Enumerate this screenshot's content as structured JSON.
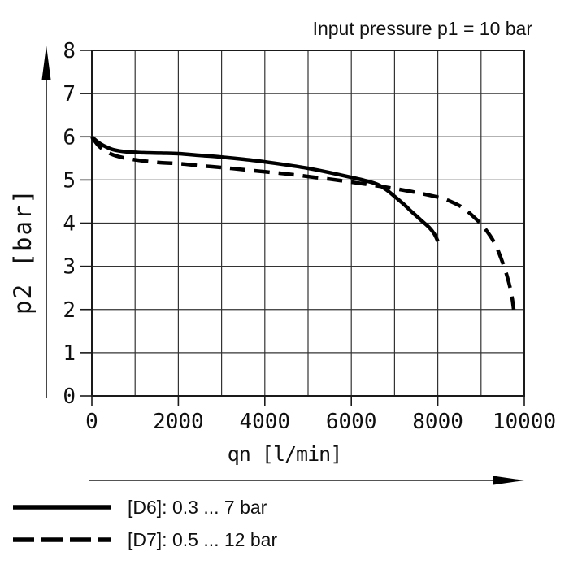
{
  "title": "Input pressure p1 = 10 bar",
  "colors": {
    "background": "#ffffff",
    "curve": "#000000",
    "grid": "#333333",
    "axis": "#1a1a1a",
    "text": "#101010"
  },
  "chart_data": {
    "type": "line",
    "title": "Input pressure p1 = 10 bar",
    "xlabel": "qn [l/min]",
    "ylabel": "p2 [bar]",
    "xlim": [
      0,
      10000
    ],
    "ylim": [
      0,
      8
    ],
    "x_grid_step": 1000,
    "y_grid_step": 1,
    "x_ticks": [
      0,
      2000,
      4000,
      6000,
      8000,
      10000
    ],
    "y_ticks": [
      0,
      1,
      2,
      3,
      4,
      5,
      6,
      7,
      8
    ],
    "grid": true,
    "legend_position": "bottom-left",
    "series": [
      {
        "id": "D6",
        "name": "[D6]: 0.3 ... 7 bar",
        "style": "solid",
        "points": [
          [
            0,
            6.0
          ],
          [
            150,
            5.87
          ],
          [
            300,
            5.78
          ],
          [
            500,
            5.7
          ],
          [
            800,
            5.65
          ],
          [
            1200,
            5.63
          ],
          [
            1600,
            5.62
          ],
          [
            2000,
            5.61
          ],
          [
            2500,
            5.57
          ],
          [
            3000,
            5.53
          ],
          [
            3500,
            5.48
          ],
          [
            4000,
            5.42
          ],
          [
            4500,
            5.35
          ],
          [
            5000,
            5.27
          ],
          [
            5500,
            5.17
          ],
          [
            6000,
            5.06
          ],
          [
            6300,
            4.99
          ],
          [
            6600,
            4.9
          ],
          [
            6800,
            4.78
          ],
          [
            7000,
            4.62
          ],
          [
            7200,
            4.45
          ],
          [
            7400,
            4.26
          ],
          [
            7600,
            4.08
          ],
          [
            7800,
            3.9
          ],
          [
            7920,
            3.75
          ],
          [
            8000,
            3.58
          ]
        ]
      },
      {
        "id": "D7",
        "name": "[D7]: 0.5 ... 12 bar",
        "style": "dashed",
        "points": [
          [
            0,
            6.0
          ],
          [
            150,
            5.8
          ],
          [
            300,
            5.68
          ],
          [
            500,
            5.58
          ],
          [
            800,
            5.5
          ],
          [
            1200,
            5.44
          ],
          [
            1600,
            5.4
          ],
          [
            2000,
            5.38
          ],
          [
            2500,
            5.33
          ],
          [
            3000,
            5.29
          ],
          [
            3500,
            5.24
          ],
          [
            4000,
            5.19
          ],
          [
            4500,
            5.14
          ],
          [
            5000,
            5.08
          ],
          [
            5500,
            5.02
          ],
          [
            6000,
            4.95
          ],
          [
            6500,
            4.88
          ],
          [
            7000,
            4.8
          ],
          [
            7500,
            4.71
          ],
          [
            8000,
            4.6
          ],
          [
            8300,
            4.5
          ],
          [
            8600,
            4.34
          ],
          [
            8900,
            4.08
          ],
          [
            9100,
            3.86
          ],
          [
            9300,
            3.56
          ],
          [
            9450,
            3.22
          ],
          [
            9600,
            2.78
          ],
          [
            9700,
            2.38
          ],
          [
            9755,
            2.0
          ]
        ]
      }
    ]
  }
}
